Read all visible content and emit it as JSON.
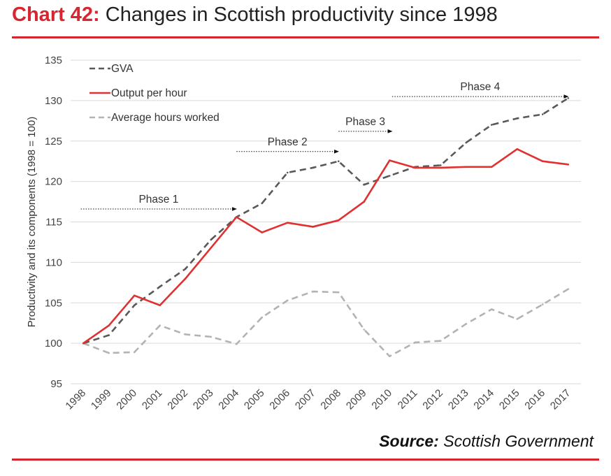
{
  "header": {
    "number": "Chart 42:",
    "title": "Changes in Scottish productivity since 1998"
  },
  "source": {
    "label": "Source:",
    "value": "Scottish Government"
  },
  "colors": {
    "accent": "#d7262e",
    "gva": "#595959",
    "oph": "#e03030",
    "hours": "#b3b3b3",
    "grid": "#d9d9d9"
  },
  "chart_data": {
    "type": "line",
    "title": "",
    "xlabel": "",
    "ylabel": "Productivity and its components  (1998 = 100)",
    "ylim": [
      95,
      135
    ],
    "yticks": [
      95,
      100,
      105,
      110,
      115,
      120,
      125,
      130,
      135
    ],
    "grid": true,
    "legend": "top-left",
    "categories": [
      "1998",
      "1999",
      "2000",
      "2001",
      "2002",
      "2003",
      "2004",
      "2005",
      "2006",
      "2007",
      "2008",
      "2009",
      "2010",
      "2011",
      "2012",
      "2013",
      "2014",
      "2015",
      "2016",
      "2017"
    ],
    "series": [
      {
        "name": "GVA",
        "style": "dashed",
        "color": "#595959",
        "values": [
          100,
          101,
          104.7,
          107,
          109.2,
          112.8,
          115.6,
          117.3,
          121.1,
          121.7,
          122.5,
          119.6,
          120.7,
          121.8,
          122,
          124.8,
          127,
          127.8,
          128.3,
          130.3
        ]
      },
      {
        "name": "Output per hour",
        "style": "solid",
        "color": "#e03030",
        "values": [
          100,
          102.2,
          105.9,
          104.7,
          108,
          111.8,
          115.6,
          113.7,
          114.9,
          114.4,
          115.2,
          117.5,
          122.6,
          121.7,
          121.7,
          121.8,
          121.8,
          124,
          122.5,
          122.1
        ]
      },
      {
        "name": "Average hours worked",
        "style": "dashed",
        "color": "#b3b3b3",
        "values": [
          100,
          98.8,
          98.9,
          102.2,
          101.1,
          100.8,
          99.9,
          103.2,
          105.3,
          106.4,
          106.3,
          101.7,
          98.4,
          100.1,
          100.3,
          102.4,
          104.2,
          103,
          104.8,
          106.7
        ]
      }
    ],
    "annotations": [
      {
        "label": "Phase 1",
        "from_year": 1997.9,
        "to_year": 2004,
        "y": 116.6
      },
      {
        "label": "Phase 2",
        "from_year": 2004,
        "to_year": 2008,
        "y": 123.7
      },
      {
        "label": "Phase 3",
        "from_year": 2008,
        "to_year": 2010.1,
        "y": 126.2
      },
      {
        "label": "Phase 4",
        "from_year": 2010.1,
        "to_year": 2017,
        "y": 130.5
      }
    ]
  }
}
